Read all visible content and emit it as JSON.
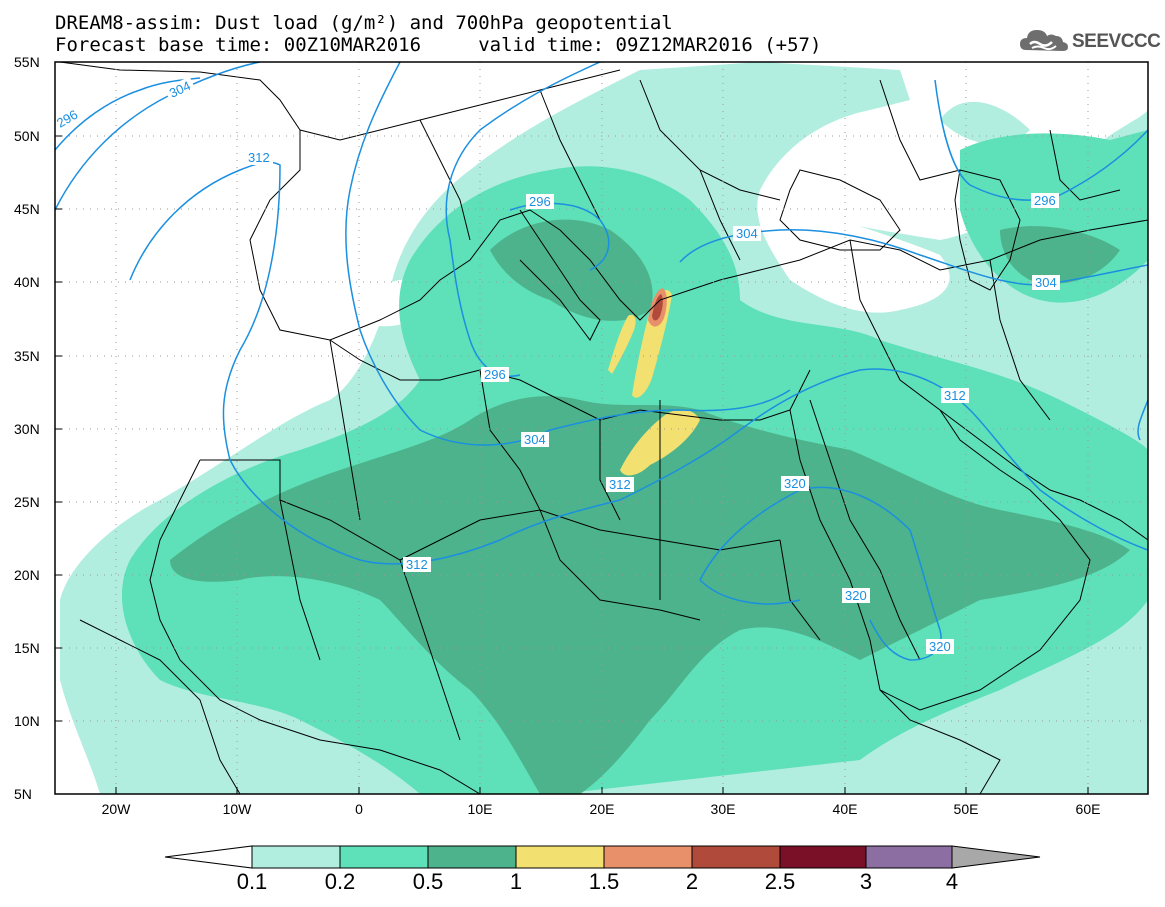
{
  "title": {
    "line1": "DREAM8-assim: Dust load (g/m²) and 700hPa geopotential",
    "line2": "Forecast base time: 00Z10MAR2016     valid time: 09Z12MAR2016 (+57)"
  },
  "logo": {
    "text": "SEEVCCC",
    "icon": "cloud-icon"
  },
  "map": {
    "lat_labels": [
      "55N",
      "50N",
      "45N",
      "40N",
      "35N",
      "30N",
      "25N",
      "20N",
      "15N",
      "10N",
      "5N"
    ],
    "lon_labels": [
      "20W",
      "10W",
      "0",
      "10E",
      "20E",
      "30E",
      "40E",
      "50E",
      "60E"
    ],
    "lon_range": [
      -25,
      65
    ],
    "lat_range": [
      5,
      55
    ],
    "contour_labels": [
      "296",
      "304",
      "312",
      "296",
      "304",
      "296",
      "296",
      "304",
      "312",
      "312",
      "304",
      "312",
      "320",
      "320",
      "320"
    ],
    "colors": {
      "contour": "#1b8fe0",
      "land_line": "#000000"
    }
  },
  "colorbar": {
    "labels": [
      "0.1",
      "0.2",
      "0.5",
      "1",
      "1.5",
      "2",
      "2.5",
      "3",
      "4"
    ],
    "colors": [
      "#ffffff",
      "#b2eee0",
      "#5ee0b8",
      "#4db38c",
      "#f2e070",
      "#e8906a",
      "#b04a3a",
      "#7a1028",
      "#8c6ea2",
      "#a8a8a8"
    ]
  }
}
